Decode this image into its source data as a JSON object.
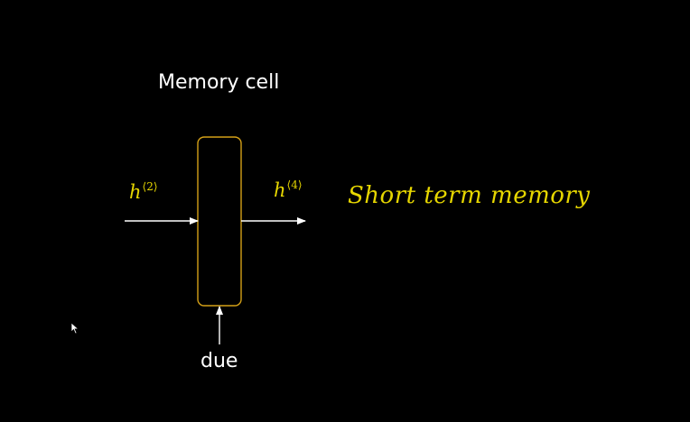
{
  "diagram": {
    "title": "Memory cell",
    "input_hidden": {
      "base": "h",
      "superscript": "⟨2⟩"
    },
    "output_hidden": {
      "base": "h",
      "superscript": "⟨4⟩"
    },
    "caption": "Short term memory",
    "bottom_input": "due"
  },
  "colors": {
    "background": "#000000",
    "text": "#ffffff",
    "accent": "#e6d600",
    "cell_border": "#d4a017",
    "arrow": "#ffffff"
  },
  "icons": {
    "cursor": "mouse-pointer-icon"
  }
}
